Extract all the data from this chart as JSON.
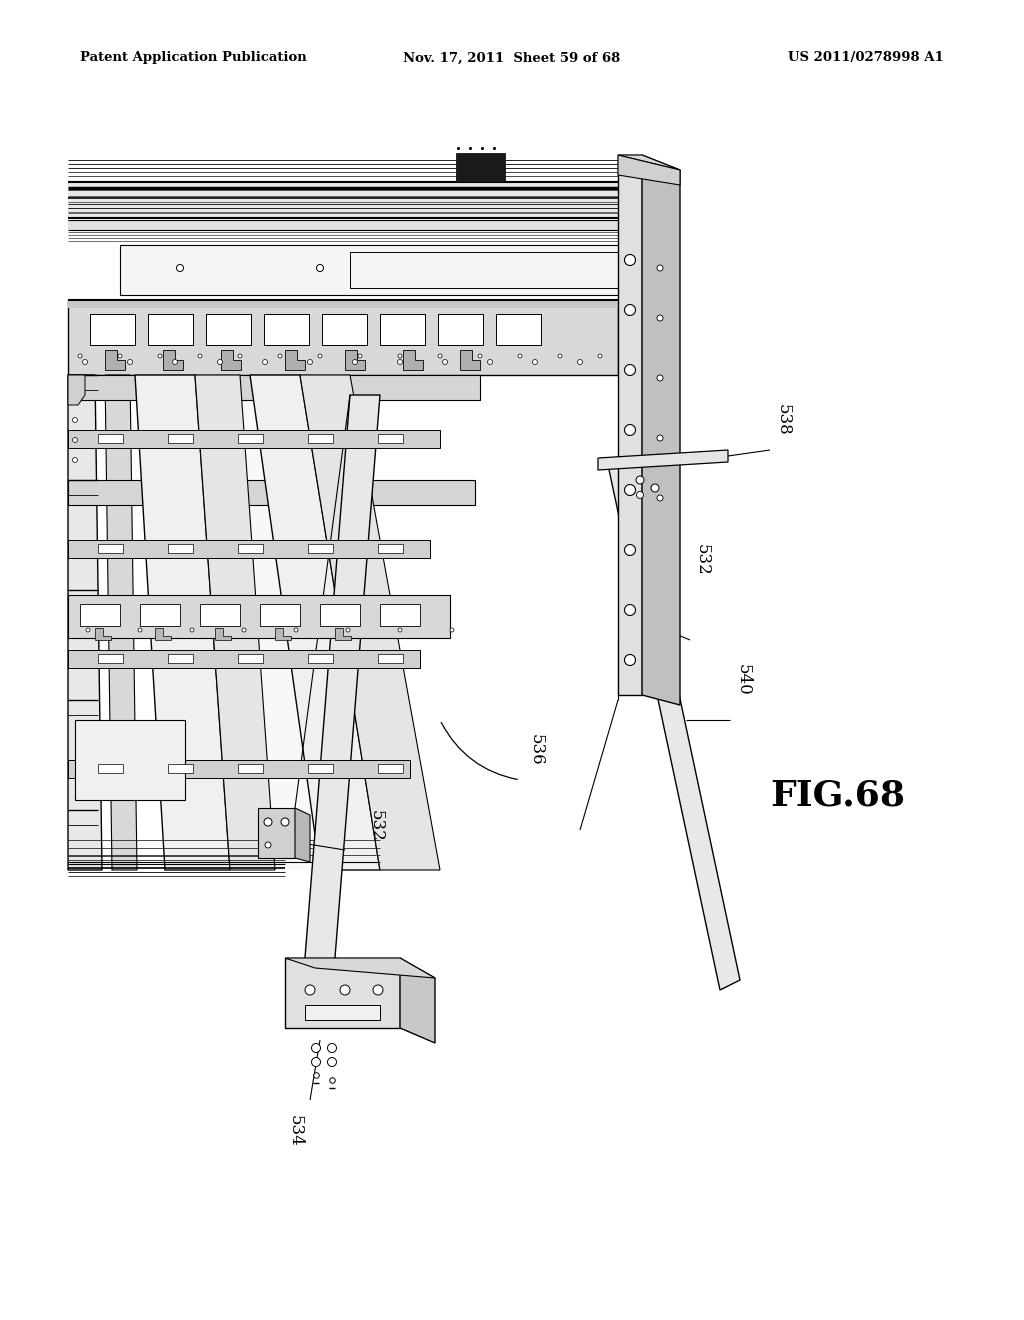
{
  "bg_color": "#ffffff",
  "header_left": "Patent Application Publication",
  "header_mid": "Nov. 17, 2011  Sheet 59 of 68",
  "header_right": "US 2011/0278998 A1",
  "fig_label": "FIG.68",
  "lc": "#000000",
  "label_532_top": "532",
  "label_532_bot": "532",
  "label_534": "534",
  "label_536": "536",
  "label_538": "538",
  "label_540": "540"
}
